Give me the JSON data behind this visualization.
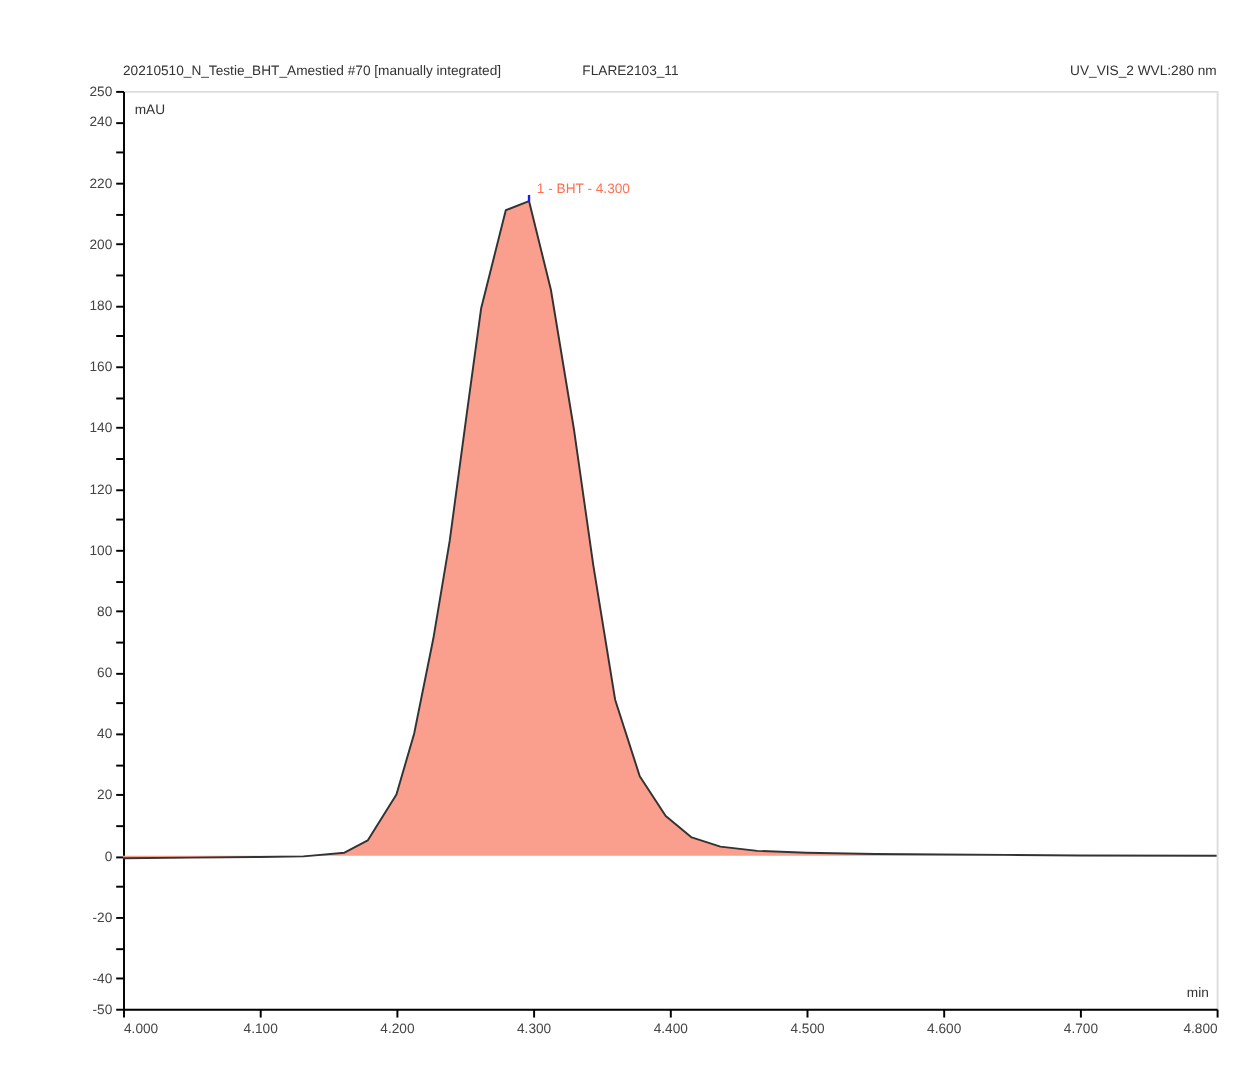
{
  "chart_data": {
    "type": "area",
    "title": "20210510_N_Testie_BHT_Amestied #70 [manually integrated]",
    "subtitle": "FLARE2103_11",
    "annotations": [
      "UV_VIS_2 WVL:280 nm",
      {
        "text": "1 - BHT - 4.300",
        "x": 4.297,
        "y": 214
      }
    ],
    "ylabel": "mAU",
    "xlabel": "min",
    "series": [
      {
        "color": "#fa9f8e",
        "x": [
          4.0,
          4.05,
          4.1,
          4.132,
          4.162,
          4.179,
          4.2,
          4.213,
          4.227,
          4.239,
          4.251,
          4.262,
          4.28,
          4.297,
          4.313,
          4.33,
          4.344,
          4.36,
          4.378,
          4.397,
          4.416,
          4.437,
          4.464,
          4.5,
          4.55,
          4.646,
          4.7,
          4.8
        ],
        "values": [
          -0.8,
          -0.6,
          -0.4,
          -0.2,
          1,
          5,
          20,
          40,
          71,
          103,
          143,
          179,
          211,
          214,
          185,
          139,
          95,
          51,
          26,
          13,
          6,
          3,
          1.6,
          1,
          0.6,
          0.3,
          0.1,
          0
        ]
      }
    ],
    "xlim": [
      4.0,
      4.8
    ],
    "ylim": [
      -50,
      250
    ],
    "xticks": [
      {
        "value": 4.0,
        "label": "4.000"
      },
      {
        "value": 4.1,
        "label": "4.100"
      },
      {
        "value": 4.2,
        "label": "4.200"
      },
      {
        "value": 4.3,
        "label": "4.300"
      },
      {
        "value": 4.4,
        "label": "4.400"
      },
      {
        "value": 4.5,
        "label": "4.500"
      },
      {
        "value": 4.6,
        "label": "4.600"
      },
      {
        "value": 4.7,
        "label": "4.700"
      },
      {
        "value": 4.8,
        "label": "4.800"
      }
    ],
    "yticks": [
      -50,
      -40,
      {
        "value": -30,
        "label": null
      },
      -20,
      {
        "value": -10,
        "label": null
      },
      0,
      {
        "value": 10,
        "label": null
      },
      20,
      {
        "value": 30,
        "label": null
      },
      40,
      {
        "value": 50,
        "label": null
      },
      60,
      {
        "value": 70,
        "label": null
      },
      80,
      {
        "value": 90,
        "label": null
      },
      100,
      {
        "value": 110,
        "label": null
      },
      120,
      {
        "value": 130,
        "label": null
      },
      140,
      {
        "value": 150,
        "label": null
      },
      160,
      {
        "value": 170,
        "label": null
      },
      180,
      {
        "value": 190,
        "label": null
      },
      200,
      {
        "value": 210,
        "label": null
      },
      220,
      {
        "value": 230,
        "label": null
      },
      240,
      250
    ],
    "grid": false
  }
}
